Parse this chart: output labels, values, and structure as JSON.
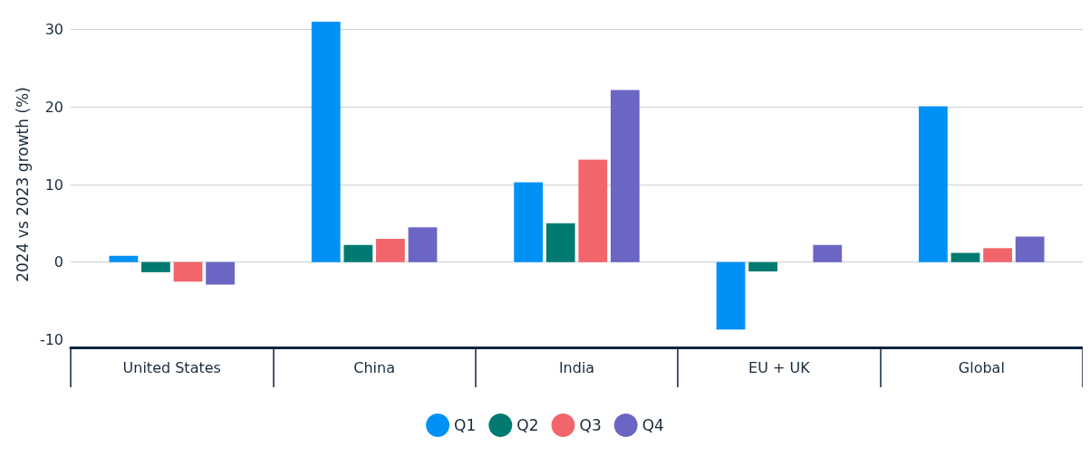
{
  "chart_data": {
    "type": "bar",
    "ylabel": "2024 vs 2023 growth (%)",
    "categories": [
      "United States",
      "China",
      "India",
      "EU + UK",
      "Global"
    ],
    "series": [
      {
        "name": "Q1",
        "color": "#0091f7",
        "values": [
          0.8,
          31,
          10.3,
          -8.7,
          20.1
        ]
      },
      {
        "name": "Q2",
        "color": "#007a70",
        "values": [
          -1.3,
          2.2,
          5.0,
          -1.2,
          1.2
        ]
      },
      {
        "name": "Q3",
        "color": "#f2656b",
        "values": [
          -2.5,
          3.0,
          13.2,
          null,
          1.8
        ]
      },
      {
        "name": "Q4",
        "color": "#6b66c4",
        "values": [
          -2.9,
          4.5,
          22.2,
          2.2,
          3.3
        ]
      }
    ],
    "ylim": [
      -11,
      31
    ],
    "yticks": [
      -10,
      0,
      10,
      20,
      30
    ],
    "grid": "y",
    "legend": "bottom",
    "marker": "circle"
  }
}
